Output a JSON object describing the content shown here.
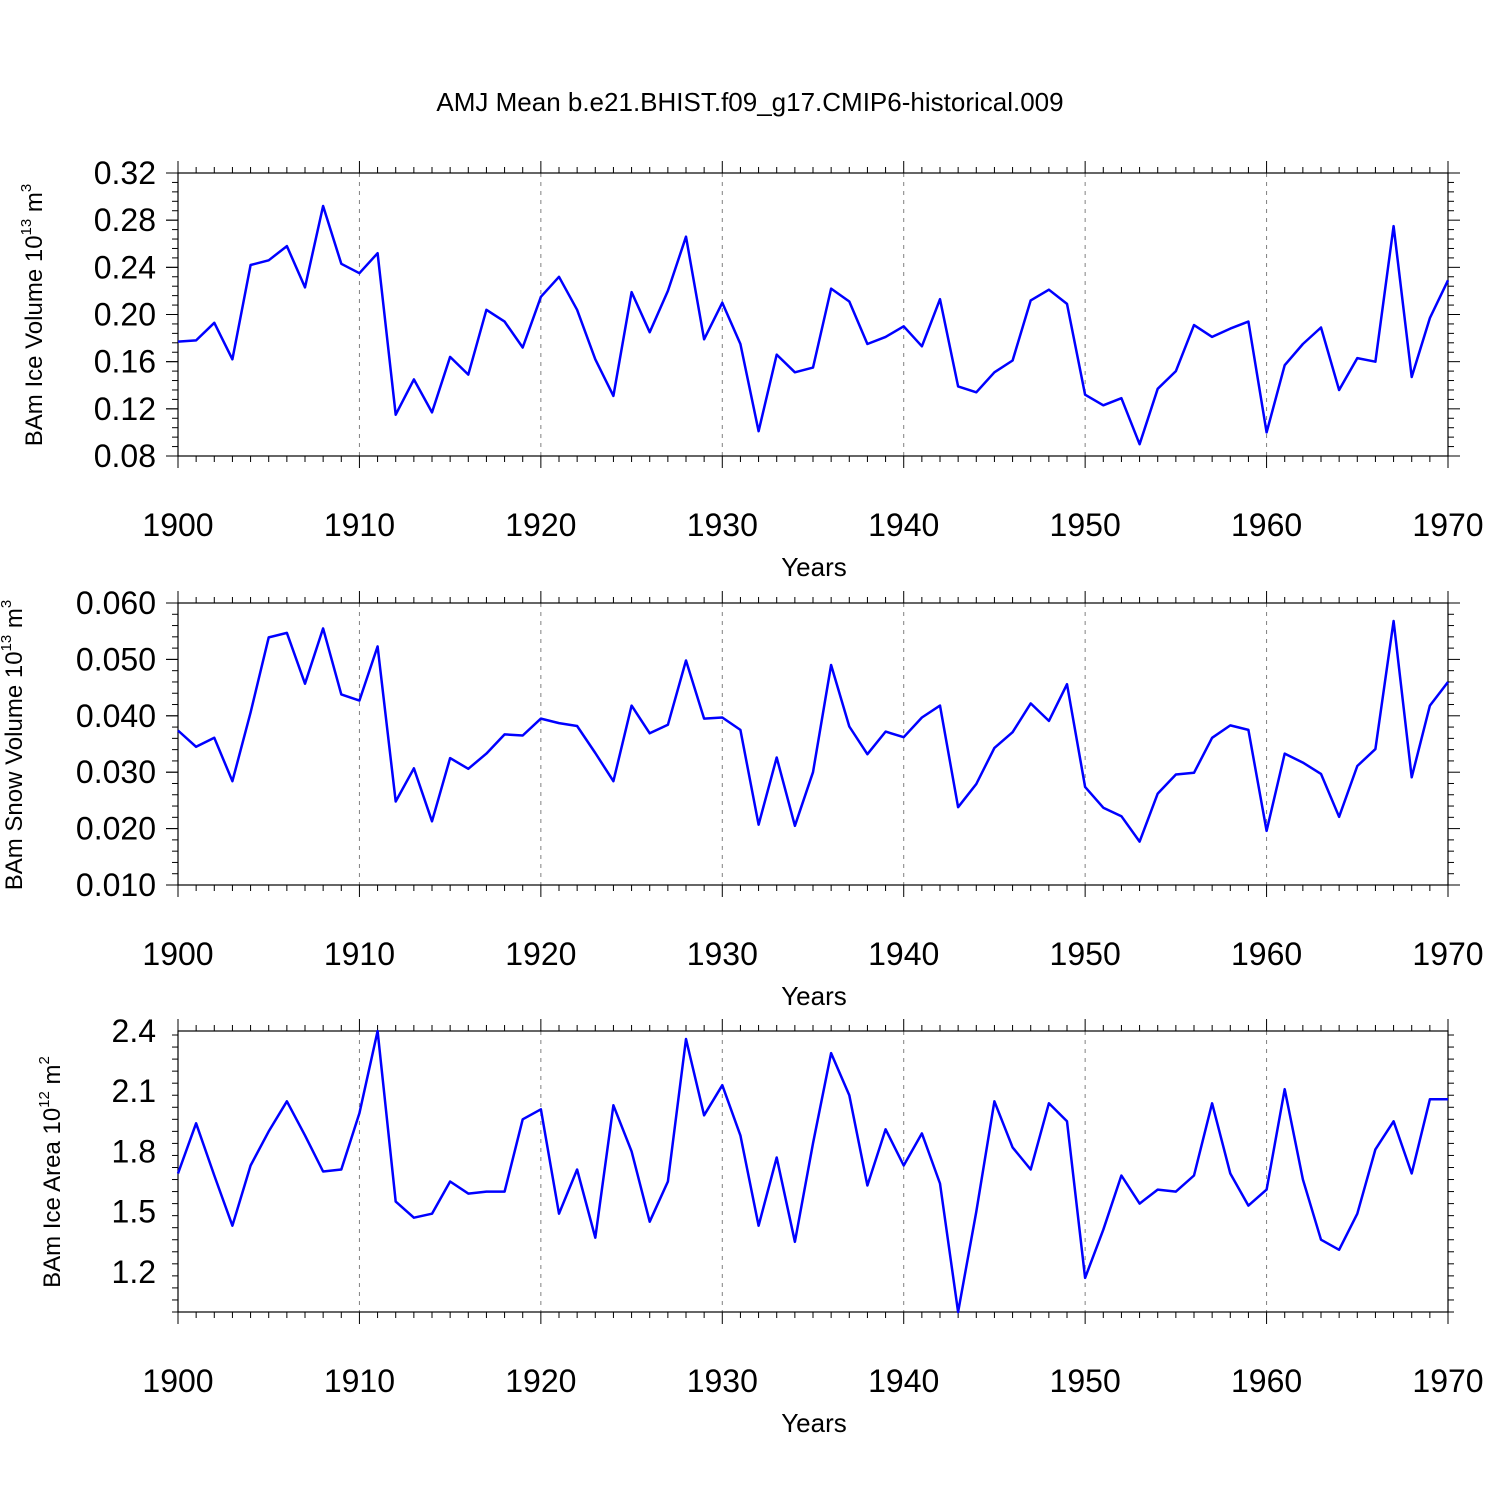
{
  "title": "AMJ Mean b.e21.BHIST.f09_g17.CMIP6-historical.009",
  "colors": {
    "line": "#0000ff",
    "grid": "#808080",
    "axis": "#000000"
  },
  "chart_data": [
    {
      "type": "line",
      "ylabel": {
        "main": "BAm Ice Volume 10",
        "exp": "13",
        "unit": " m",
        "unit_exp": "3"
      },
      "xlabel": "Years",
      "xlim": [
        1900,
        1970
      ],
      "ylim": [
        0.08,
        0.32
      ],
      "xticks": [
        1900,
        1910,
        1920,
        1930,
        1940,
        1950,
        1960,
        1970
      ],
      "xtick_labels": [
        "1900",
        "1910",
        "1920",
        "1930",
        "1940",
        "1950",
        "1960",
        "1970"
      ],
      "yticks": [
        0.08,
        0.12,
        0.16,
        0.2,
        0.24,
        0.28,
        0.32
      ],
      "ytick_labels": [
        "0.08",
        "0.12",
        "0.16",
        "0.20",
        "0.24",
        "0.28",
        "0.32"
      ],
      "series": [
        {
          "name": "BAm Ice Volume",
          "x": [
            1900,
            1901,
            1902,
            1903,
            1904,
            1905,
            1906,
            1907,
            1908,
            1909,
            1910,
            1911,
            1912,
            1913,
            1914,
            1915,
            1916,
            1917,
            1918,
            1919,
            1920,
            1921,
            1922,
            1923,
            1924,
            1925,
            1926,
            1927,
            1928,
            1929,
            1930,
            1931,
            1932,
            1933,
            1934,
            1935,
            1936,
            1937,
            1938,
            1939,
            1940,
            1941,
            1942,
            1943,
            1944,
            1945,
            1946,
            1947,
            1948,
            1949,
            1950,
            1951,
            1952,
            1953,
            1954,
            1955,
            1956,
            1957,
            1958,
            1959,
            1960,
            1961,
            1962,
            1963,
            1964,
            1965,
            1966,
            1967,
            1968,
            1969,
            1970
          ],
          "values": [
            0.177,
            0.178,
            0.193,
            0.162,
            0.242,
            0.246,
            0.258,
            0.223,
            0.292,
            0.243,
            0.235,
            0.252,
            0.115,
            0.145,
            0.117,
            0.164,
            0.149,
            0.204,
            0.194,
            0.172,
            0.215,
            0.232,
            0.204,
            0.162,
            0.131,
            0.219,
            0.185,
            0.22,
            0.266,
            0.179,
            0.21,
            0.175,
            0.101,
            0.166,
            0.151,
            0.155,
            0.222,
            0.211,
            0.175,
            0.181,
            0.19,
            0.173,
            0.213,
            0.139,
            0.134,
            0.151,
            0.161,
            0.212,
            0.221,
            0.209,
            0.132,
            0.123,
            0.129,
            0.09,
            0.137,
            0.152,
            0.191,
            0.181,
            0.188,
            0.194,
            0.1,
            0.157,
            0.175,
            0.189,
            0.136,
            0.163,
            0.16,
            0.275,
            0.147,
            0.197,
            0.229
          ]
        }
      ]
    },
    {
      "type": "line",
      "ylabel": {
        "main": "BAm Snow Volume 10",
        "exp": "13",
        "unit": " m",
        "unit_exp": "3"
      },
      "xlabel": "Years",
      "xlim": [
        1900,
        1970
      ],
      "ylim": [
        0.01,
        0.06
      ],
      "xticks": [
        1900,
        1910,
        1920,
        1930,
        1940,
        1950,
        1960,
        1970
      ],
      "xtick_labels": [
        "1900",
        "1910",
        "1920",
        "1930",
        "1940",
        "1950",
        "1960",
        "1970"
      ],
      "yticks": [
        0.01,
        0.02,
        0.03,
        0.04,
        0.05,
        0.06
      ],
      "ytick_labels": [
        "0.010",
        "0.020",
        "0.030",
        "0.040",
        "0.050",
        "0.060"
      ],
      "series": [
        {
          "name": "BAm Snow Volume",
          "x": [
            1900,
            1901,
            1902,
            1903,
            1904,
            1905,
            1906,
            1907,
            1908,
            1909,
            1910,
            1911,
            1912,
            1913,
            1914,
            1915,
            1916,
            1917,
            1918,
            1919,
            1920,
            1921,
            1922,
            1923,
            1924,
            1925,
            1926,
            1927,
            1928,
            1929,
            1930,
            1931,
            1932,
            1933,
            1934,
            1935,
            1936,
            1937,
            1938,
            1939,
            1940,
            1941,
            1942,
            1943,
            1944,
            1945,
            1946,
            1947,
            1948,
            1949,
            1950,
            1951,
            1952,
            1953,
            1954,
            1955,
            1956,
            1957,
            1958,
            1959,
            1960,
            1961,
            1962,
            1963,
            1964,
            1965,
            1966,
            1967,
            1968,
            1969,
            1970
          ],
          "values": [
            0.0374,
            0.0345,
            0.0361,
            0.0284,
            0.0406,
            0.0539,
            0.0547,
            0.0457,
            0.0555,
            0.0438,
            0.0427,
            0.0523,
            0.0248,
            0.0307,
            0.0213,
            0.0325,
            0.0306,
            0.0333,
            0.0367,
            0.0365,
            0.0395,
            0.0387,
            0.0382,
            0.0334,
            0.0284,
            0.0418,
            0.0369,
            0.0384,
            0.0498,
            0.0395,
            0.0397,
            0.0375,
            0.0207,
            0.0326,
            0.0205,
            0.03,
            0.049,
            0.0381,
            0.0332,
            0.0372,
            0.0362,
            0.0397,
            0.0418,
            0.0238,
            0.0279,
            0.0343,
            0.0371,
            0.0422,
            0.0391,
            0.0456,
            0.0274,
            0.0237,
            0.0222,
            0.0177,
            0.0262,
            0.0296,
            0.0299,
            0.0361,
            0.0383,
            0.0375,
            0.0196,
            0.0333,
            0.0317,
            0.0297,
            0.0221,
            0.0311,
            0.0341,
            0.0568,
            0.0291,
            0.0418,
            0.046
          ]
        }
      ]
    },
    {
      "type": "line",
      "ylabel": {
        "main": "BAm Ice Area 10",
        "exp": "12",
        "unit": " m",
        "unit_exp": "2"
      },
      "xlabel": "Years",
      "xlim": [
        1900,
        1970
      ],
      "ylim": [
        1.0,
        2.4
      ],
      "xticks": [
        1900,
        1910,
        1920,
        1930,
        1940,
        1950,
        1960,
        1970
      ],
      "xtick_labels": [
        "1900",
        "1910",
        "1920",
        "1930",
        "1940",
        "1950",
        "1960",
        "1970"
      ],
      "yticks": [
        1.2,
        1.5,
        1.8,
        2.1,
        2.4
      ],
      "ytick_labels": [
        "1.2",
        "1.5",
        "1.8",
        "2.1",
        "2.4"
      ],
      "series": [
        {
          "name": "BAm Ice Area",
          "x": [
            1900,
            1901,
            1902,
            1903,
            1904,
            1905,
            1906,
            1907,
            1908,
            1909,
            1910,
            1911,
            1912,
            1913,
            1914,
            1915,
            1916,
            1917,
            1918,
            1919,
            1920,
            1921,
            1922,
            1923,
            1924,
            1925,
            1926,
            1927,
            1928,
            1929,
            1930,
            1931,
            1932,
            1933,
            1934,
            1935,
            1936,
            1937,
            1938,
            1939,
            1940,
            1941,
            1942,
            1943,
            1944,
            1945,
            1946,
            1947,
            1948,
            1949,
            1950,
            1951,
            1952,
            1953,
            1954,
            1955,
            1956,
            1957,
            1958,
            1959,
            1960,
            1961,
            1962,
            1963,
            1964,
            1965,
            1966,
            1967,
            1968,
            1969,
            1970
          ],
          "values": [
            1.69,
            1.94,
            1.68,
            1.43,
            1.73,
            1.9,
            2.05,
            1.88,
            1.7,
            1.71,
            1.99,
            2.4,
            1.55,
            1.47,
            1.49,
            1.65,
            1.59,
            1.6,
            1.6,
            1.96,
            2.01,
            1.49,
            1.71,
            1.37,
            2.03,
            1.8,
            1.45,
            1.65,
            2.36,
            1.98,
            2.13,
            1.88,
            1.43,
            1.77,
            1.35,
            1.84,
            2.29,
            2.08,
            1.63,
            1.91,
            1.73,
            1.89,
            1.64,
            1.0,
            1.5,
            2.05,
            1.82,
            1.71,
            2.04,
            1.95,
            1.17,
            1.41,
            1.68,
            1.54,
            1.61,
            1.6,
            1.68,
            2.04,
            1.69,
            1.53,
            1.61,
            2.11,
            1.66,
            1.36,
            1.31,
            1.49,
            1.81,
            1.95,
            1.69,
            2.06,
            2.06
          ]
        }
      ]
    }
  ]
}
